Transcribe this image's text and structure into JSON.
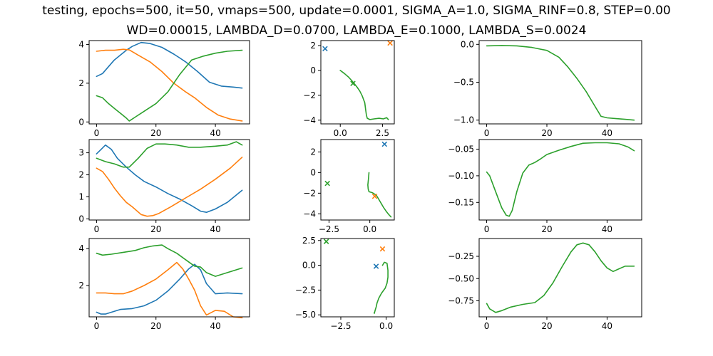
{
  "figure": {
    "title_line_1": "testing, epochs=500, it=50, vmaps=500, update=0.0001, SIGMA_A=1.0, SIGMA_RINF=0.8, STEP=0.00",
    "title_line_2": "WD=0.00015, LAMBDA_D=0.0700, LAMBDA_E=0.1000, LAMBDA_S=0.0024"
  },
  "colors": {
    "c0": "#1f77b4",
    "c1": "#ff7f0e",
    "c2": "#2ca02c"
  },
  "chart_data": [
    {
      "type": "line",
      "grid": false,
      "xlim": [
        -2.5,
        51.5
      ],
      "ylim": [
        -0.1,
        4.2
      ],
      "xticks": [
        0,
        20,
        40
      ],
      "yticks": [
        0,
        2,
        4
      ],
      "series": [
        {
          "color": "#1f77b4",
          "x": [
            0,
            2,
            4,
            6,
            8,
            10,
            12,
            15,
            18,
            22,
            26,
            30,
            34,
            38,
            42,
            46,
            49
          ],
          "y": [
            2.35,
            2.5,
            2.85,
            3.2,
            3.45,
            3.7,
            3.9,
            4.1,
            4.05,
            3.85,
            3.5,
            3.1,
            2.6,
            2.05,
            1.85,
            1.8,
            1.75
          ]
        },
        {
          "color": "#ff7f0e",
          "x": [
            0,
            3,
            6,
            9,
            11,
            14,
            18,
            22,
            26,
            30,
            33,
            37,
            41,
            45,
            49
          ],
          "y": [
            3.65,
            3.7,
            3.7,
            3.75,
            3.72,
            3.45,
            3.1,
            2.6,
            2.0,
            1.55,
            1.25,
            0.75,
            0.35,
            0.15,
            0.05
          ]
        },
        {
          "color": "#2ca02c",
          "x": [
            0,
            2,
            4,
            6,
            8,
            10,
            11,
            13,
            16,
            20,
            24,
            28,
            32,
            36,
            40,
            44,
            49
          ],
          "y": [
            1.35,
            1.25,
            0.95,
            0.7,
            0.45,
            0.2,
            0.05,
            0.25,
            0.55,
            0.95,
            1.55,
            2.45,
            3.2,
            3.4,
            3.55,
            3.65,
            3.7
          ]
        }
      ]
    },
    {
      "type": "scatter",
      "grid": false,
      "xlim": [
        -1.15,
        3.2
      ],
      "ylim": [
        -4.3,
        2.4
      ],
      "xticks": [
        0.0,
        2.5
      ],
      "xtick_labels": [
        "0.0",
        "2.5"
      ],
      "yticks": [
        -4,
        -2,
        0,
        2
      ],
      "ytick_labels": [
        "−4",
        "−2",
        "0",
        "2"
      ],
      "line": {
        "color": "#2ca02c",
        "x": [
          0.0,
          0.25,
          0.5,
          0.7,
          0.85,
          1.0,
          1.15,
          1.3,
          1.45,
          1.5,
          1.55,
          1.6,
          1.75,
          2.0,
          2.3,
          2.55,
          2.75,
          2.85
        ],
        "y": [
          0.0,
          -0.25,
          -0.55,
          -0.85,
          -1.1,
          -1.35,
          -1.65,
          -2.05,
          -2.6,
          -3.1,
          -3.6,
          -3.85,
          -3.95,
          -3.9,
          -3.85,
          -3.9,
          -3.8,
          -3.95
        ]
      },
      "markers": [
        {
          "color": "#1f77b4",
          "x": -0.9,
          "y": 1.75
        },
        {
          "color": "#ff7f0e",
          "x": 2.95,
          "y": 2.2
        },
        {
          "color": "#2ca02c",
          "x": 0.75,
          "y": -1.05
        }
      ]
    },
    {
      "type": "line",
      "grid": false,
      "xlim": [
        -2.5,
        51.5
      ],
      "ylim": [
        -1.05,
        0.05
      ],
      "xticks": [
        0,
        20,
        40
      ],
      "yticks": [
        0.0,
        -0.5,
        -1.0
      ],
      "ytick_labels": [
        "0.0",
        "−0.5",
        "−1.0"
      ],
      "series": [
        {
          "color": "#2ca02c",
          "x": [
            0,
            5,
            10,
            15,
            20,
            24,
            27,
            30,
            33,
            36,
            38,
            40,
            43,
            46,
            49
          ],
          "y": [
            -0.02,
            -0.015,
            -0.02,
            -0.04,
            -0.08,
            -0.17,
            -0.3,
            -0.45,
            -0.62,
            -0.82,
            -0.95,
            -0.97,
            -0.98,
            -0.99,
            -1.0
          ]
        }
      ]
    },
    {
      "type": "line",
      "grid": false,
      "xlim": [
        -2.5,
        51.5
      ],
      "ylim": [
        -0.05,
        3.6
      ],
      "xticks": [
        0,
        20,
        40
      ],
      "yticks": [
        0,
        1,
        2,
        3
      ],
      "series": [
        {
          "color": "#1f77b4",
          "x": [
            0,
            1.5,
            3,
            5,
            7,
            10,
            13,
            16,
            20,
            24,
            28,
            32,
            35,
            37,
            40,
            44,
            49
          ],
          "y": [
            2.95,
            3.15,
            3.35,
            3.15,
            2.75,
            2.35,
            2.0,
            1.7,
            1.45,
            1.15,
            0.9,
            0.6,
            0.35,
            0.3,
            0.45,
            0.75,
            1.3
          ]
        },
        {
          "color": "#ff7f0e",
          "x": [
            0,
            2,
            4,
            6,
            8,
            10,
            12,
            15,
            17,
            19,
            21,
            25,
            30,
            35,
            40,
            45,
            49
          ],
          "y": [
            2.3,
            2.15,
            1.8,
            1.4,
            1.05,
            0.75,
            0.55,
            0.2,
            0.12,
            0.15,
            0.25,
            0.55,
            0.95,
            1.35,
            1.8,
            2.3,
            2.8
          ]
        },
        {
          "color": "#2ca02c",
          "x": [
            0,
            3,
            6,
            9,
            11,
            14,
            17,
            20,
            23,
            27,
            31,
            35,
            40,
            44,
            47,
            49
          ],
          "y": [
            2.75,
            2.6,
            2.5,
            2.35,
            2.35,
            2.75,
            3.2,
            3.4,
            3.4,
            3.35,
            3.25,
            3.25,
            3.3,
            3.35,
            3.5,
            3.35
          ]
        }
      ]
    },
    {
      "type": "scatter",
      "grid": false,
      "xlim": [
        -3.0,
        1.5
      ],
      "ylim": [
        -4.6,
        3.2
      ],
      "xticks": [
        -2.5,
        0.0
      ],
      "xtick_labels": [
        "−2.5",
        "0.0"
      ],
      "yticks": [
        2,
        0,
        -2,
        -4
      ],
      "ytick_labels": [
        "2",
        "0",
        "−2",
        "−4"
      ],
      "line": {
        "color": "#2ca02c",
        "x": [
          -0.05,
          -0.08,
          -0.12,
          -0.1,
          -0.05,
          0.15,
          0.4,
          0.55,
          0.7,
          0.85,
          1.0,
          1.15,
          1.3
        ],
        "y": [
          0.0,
          -0.6,
          -1.2,
          -1.6,
          -1.85,
          -1.95,
          -2.2,
          -2.6,
          -3.0,
          -3.4,
          -3.75,
          -4.05,
          -4.3
        ]
      },
      "markers": [
        {
          "color": "#1f77b4",
          "x": 0.9,
          "y": 2.75
        },
        {
          "color": "#ff7f0e",
          "x": 0.3,
          "y": -2.3
        },
        {
          "color": "#2ca02c",
          "x": -2.6,
          "y": -1.05
        }
      ]
    },
    {
      "type": "line",
      "grid": false,
      "xlim": [
        -2.5,
        51.5
      ],
      "ylim": [
        -0.183,
        -0.032
      ],
      "xticks": [
        0,
        20,
        40
      ],
      "yticks": [
        -0.05,
        -0.1,
        -0.15
      ],
      "ytick_labels": [
        "−0.05",
        "−0.10",
        "−0.15"
      ],
      "series": [
        {
          "color": "#2ca02c",
          "x": [
            0,
            1,
            3,
            5,
            6.5,
            7.5,
            8.5,
            10,
            12,
            14,
            16,
            18,
            20,
            24,
            28,
            32,
            36,
            40,
            44,
            47,
            49
          ],
          "y": [
            -0.093,
            -0.1,
            -0.13,
            -0.16,
            -0.174,
            -0.176,
            -0.165,
            -0.13,
            -0.095,
            -0.08,
            -0.075,
            -0.068,
            -0.06,
            -0.052,
            -0.045,
            -0.039,
            -0.038,
            -0.038,
            -0.04,
            -0.046,
            -0.053
          ]
        }
      ]
    },
    {
      "type": "line",
      "grid": false,
      "xlim": [
        -2.5,
        51.5
      ],
      "ylim": [
        0.3,
        4.55
      ],
      "xticks": [
        0,
        20,
        40
      ],
      "yticks": [
        2,
        4
      ],
      "series": [
        {
          "color": "#1f77b4",
          "x": [
            0,
            1.5,
            3,
            5,
            8,
            12,
            16,
            20,
            24,
            28,
            31,
            33,
            35,
            37,
            40,
            44,
            49
          ],
          "y": [
            0.55,
            0.45,
            0.45,
            0.55,
            0.7,
            0.75,
            0.9,
            1.2,
            1.7,
            2.35,
            2.9,
            3.15,
            2.85,
            2.1,
            1.55,
            1.6,
            1.55
          ]
        },
        {
          "color": "#ff7f0e",
          "x": [
            0,
            3,
            6,
            9,
            12,
            16,
            20,
            24,
            27,
            29,
            31,
            33,
            35,
            37,
            40,
            43,
            46,
            49
          ],
          "y": [
            1.6,
            1.6,
            1.55,
            1.55,
            1.7,
            2.0,
            2.35,
            2.85,
            3.25,
            2.9,
            2.35,
            1.75,
            0.9,
            0.4,
            0.65,
            0.6,
            0.3,
            0.25
          ]
        },
        {
          "color": "#2ca02c",
          "x": [
            0,
            2,
            5,
            9,
            13,
            16,
            19,
            22,
            24,
            27,
            30,
            33,
            35,
            37,
            40,
            44,
            49
          ],
          "y": [
            3.75,
            3.65,
            3.7,
            3.8,
            3.9,
            4.05,
            4.15,
            4.2,
            4.0,
            3.75,
            3.4,
            3.05,
            3.0,
            2.7,
            2.5,
            2.7,
            2.95
          ]
        }
      ]
    },
    {
      "type": "scatter",
      "grid": false,
      "xlim": [
        -3.6,
        0.45
      ],
      "ylim": [
        -5.2,
        2.7
      ],
      "xticks": [
        -2.5,
        0.0
      ],
      "xtick_labels": [
        "−2.5",
        "0.0"
      ],
      "yticks": [
        2.5,
        0.0,
        -2.5,
        -5.0
      ],
      "ytick_labels": [
        "2.5",
        "0.0",
        "−2.5",
        "−5.0"
      ],
      "line": {
        "color": "#2ca02c",
        "x": [
          -0.2,
          -0.1,
          0.05,
          0.1,
          0.1,
          0.05,
          -0.05,
          -0.25,
          -0.4,
          -0.5,
          -0.55,
          -0.6,
          -0.65,
          -0.65
        ],
        "y": [
          0.0,
          0.3,
          0.2,
          -0.5,
          -1.2,
          -1.8,
          -2.3,
          -2.8,
          -3.3,
          -3.8,
          -4.2,
          -4.5,
          -4.85,
          -4.75
        ]
      },
      "markers": [
        {
          "color": "#1f77b4",
          "x": -0.55,
          "y": -0.1
        },
        {
          "color": "#ff7f0e",
          "x": -0.2,
          "y": 1.65
        },
        {
          "color": "#2ca02c",
          "x": -3.3,
          "y": 2.4
        }
      ]
    },
    {
      "type": "line",
      "grid": false,
      "xlim": [
        -2.5,
        51.5
      ],
      "ylim": [
        -0.93,
        -0.05
      ],
      "xticks": [
        0,
        20,
        40
      ],
      "yticks": [
        -0.25,
        -0.5,
        -0.75
      ],
      "ytick_labels": [
        "−0.25",
        "−0.50",
        "−0.75"
      ],
      "series": [
        {
          "color": "#2ca02c",
          "x": [
            0,
            1,
            3,
            5,
            8,
            12,
            16,
            19,
            22,
            25,
            28,
            30,
            32,
            34,
            36,
            38,
            40,
            42,
            44,
            46,
            49
          ],
          "y": [
            -0.78,
            -0.84,
            -0.88,
            -0.86,
            -0.82,
            -0.79,
            -0.77,
            -0.69,
            -0.55,
            -0.37,
            -0.2,
            -0.12,
            -0.1,
            -0.12,
            -0.2,
            -0.3,
            -0.38,
            -0.42,
            -0.39,
            -0.36,
            -0.36
          ]
        }
      ]
    }
  ]
}
